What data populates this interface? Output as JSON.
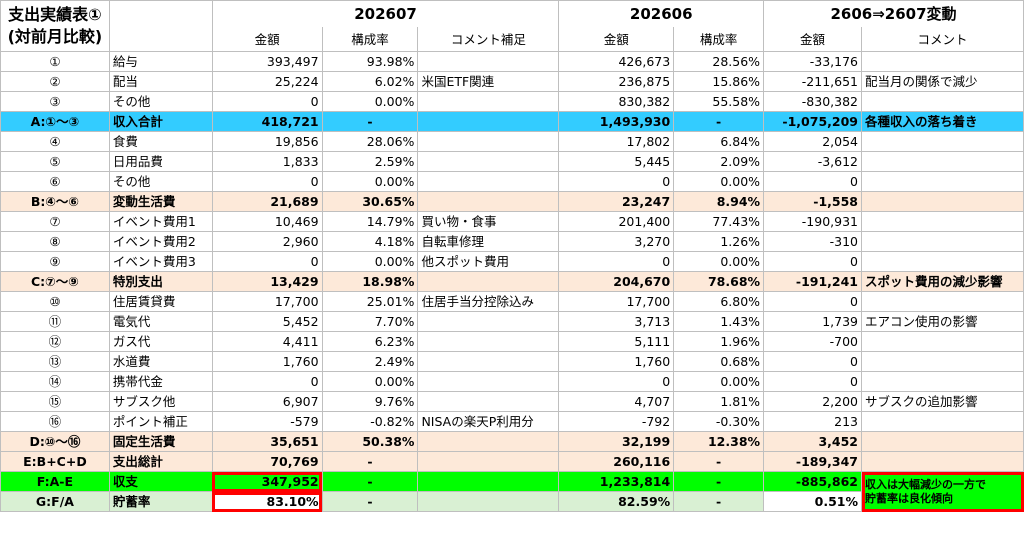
{
  "title": "支出実績表①\n(対前月比較)",
  "title_line1": "支出実績表①",
  "title_line2": "(対前月比較)",
  "periods": {
    "current": "202607",
    "previous": "202606",
    "diff": "2606⇒2607変動"
  },
  "col_headers": {
    "amount": "金額",
    "ratio": "構成率",
    "comment_supp": "コメント補足",
    "comment": "コメント"
  },
  "rows": [
    {
      "id": "①",
      "item": "給与",
      "cur_amt": "393,497",
      "cur_ratio": "93.98%",
      "cur_comment": "",
      "prev_amt": "426,673",
      "prev_ratio": "28.56%",
      "diff": "-33,176",
      "comment": ""
    },
    {
      "id": "②",
      "item": "配当",
      "cur_amt": "25,224",
      "cur_ratio": "6.02%",
      "cur_comment": "米国ETF関連",
      "prev_amt": "236,875",
      "prev_ratio": "15.86%",
      "diff": "-211,651",
      "comment": "配当月の関係で減少"
    },
    {
      "id": "③",
      "item": "その他",
      "cur_amt": "0",
      "cur_ratio": "0.00%",
      "cur_comment": "",
      "prev_amt": "830,382",
      "prev_ratio": "55.58%",
      "diff": "-830,382",
      "comment": ""
    },
    {
      "id": "A:①～③",
      "item": "収入合計",
      "cur_amt": "418,721",
      "cur_ratio": "-",
      "cur_comment": "",
      "prev_amt": "1,493,930",
      "prev_ratio": "-",
      "diff": "-1,075,209",
      "comment": "各種収入の落ち着き",
      "style": "cyan"
    },
    {
      "id": "④",
      "item": "食費",
      "cur_amt": "19,856",
      "cur_ratio": "28.06%",
      "cur_comment": "",
      "prev_amt": "17,802",
      "prev_ratio": "6.84%",
      "diff": "2,054",
      "comment": ""
    },
    {
      "id": "⑤",
      "item": "日用品費",
      "cur_amt": "1,833",
      "cur_ratio": "2.59%",
      "cur_comment": "",
      "prev_amt": "5,445",
      "prev_ratio": "2.09%",
      "diff": "-3,612",
      "comment": ""
    },
    {
      "id": "⑥",
      "item": "その他",
      "cur_amt": "0",
      "cur_ratio": "0.00%",
      "cur_comment": "",
      "prev_amt": "0",
      "prev_ratio": "0.00%",
      "diff": "0",
      "comment": ""
    },
    {
      "id": "B:④～⑥",
      "item": "変動生活費",
      "cur_amt": "21,689",
      "cur_ratio": "30.65%",
      "cur_comment": "",
      "prev_amt": "23,247",
      "prev_ratio": "8.94%",
      "diff": "-1,558",
      "comment": "",
      "style": "tan"
    },
    {
      "id": "⑦",
      "item": "イベント費用1",
      "cur_amt": "10,469",
      "cur_ratio": "14.79%",
      "cur_comment": "買い物・食事",
      "prev_amt": "201,400",
      "prev_ratio": "77.43%",
      "diff": "-190,931",
      "comment": ""
    },
    {
      "id": "⑧",
      "item": "イベント費用2",
      "cur_amt": "2,960",
      "cur_ratio": "4.18%",
      "cur_comment": "自転車修理",
      "prev_amt": "3,270",
      "prev_ratio": "1.26%",
      "diff": "-310",
      "comment": ""
    },
    {
      "id": "⑨",
      "item": "イベント費用3",
      "cur_amt": "0",
      "cur_ratio": "0.00%",
      "cur_comment": "他スポット費用",
      "prev_amt": "0",
      "prev_ratio": "0.00%",
      "diff": "0",
      "comment": ""
    },
    {
      "id": "C:⑦～⑨",
      "item": "特別支出",
      "cur_amt": "13,429",
      "cur_ratio": "18.98%",
      "cur_comment": "",
      "prev_amt": "204,670",
      "prev_ratio": "78.68%",
      "diff": "-191,241",
      "comment": "スポット費用の減少影響",
      "style": "tan"
    },
    {
      "id": "⑩",
      "item": "住居賃貸費",
      "cur_amt": "17,700",
      "cur_ratio": "25.01%",
      "cur_comment": "住居手当分控除込み",
      "prev_amt": "17,700",
      "prev_ratio": "6.80%",
      "diff": "0",
      "comment": ""
    },
    {
      "id": "⑪",
      "item": "電気代",
      "cur_amt": "5,452",
      "cur_ratio": "7.70%",
      "cur_comment": "",
      "prev_amt": "3,713",
      "prev_ratio": "1.43%",
      "diff": "1,739",
      "comment": "エアコン使用の影響"
    },
    {
      "id": "⑫",
      "item": "ガス代",
      "cur_amt": "4,411",
      "cur_ratio": "6.23%",
      "cur_comment": "",
      "prev_amt": "5,111",
      "prev_ratio": "1.96%",
      "diff": "-700",
      "comment": ""
    },
    {
      "id": "⑬",
      "item": "水道費",
      "cur_amt": "1,760",
      "cur_ratio": "2.49%",
      "cur_comment": "",
      "prev_amt": "1,760",
      "prev_ratio": "0.68%",
      "diff": "0",
      "comment": ""
    },
    {
      "id": "⑭",
      "item": "携帯代金",
      "cur_amt": "0",
      "cur_ratio": "0.00%",
      "cur_comment": "",
      "prev_amt": "0",
      "prev_ratio": "0.00%",
      "diff": "0",
      "comment": ""
    },
    {
      "id": "⑮",
      "item": "サブスク他",
      "cur_amt": "6,907",
      "cur_ratio": "9.76%",
      "cur_comment": "",
      "prev_amt": "4,707",
      "prev_ratio": "1.81%",
      "diff": "2,200",
      "comment": "サブスクの追加影響"
    },
    {
      "id": "⑯",
      "item": "ポイント補正",
      "cur_amt": "-579",
      "cur_ratio": "-0.82%",
      "cur_comment": "NISAの楽天P利用分",
      "prev_amt": "-792",
      "prev_ratio": "-0.30%",
      "diff": "213",
      "comment": ""
    },
    {
      "id": "D:⑩～⑯",
      "item": "固定生活費",
      "cur_amt": "35,651",
      "cur_ratio": "50.38%",
      "cur_comment": "",
      "prev_amt": "32,199",
      "prev_ratio": "12.38%",
      "diff": "3,452",
      "comment": "",
      "style": "tan"
    },
    {
      "id": "E:B+C+D",
      "item": "支出総計",
      "cur_amt": "70,769",
      "cur_ratio": "-",
      "cur_comment": "",
      "prev_amt": "260,116",
      "prev_ratio": "-",
      "diff": "-189,347",
      "comment": "",
      "style": "tan"
    },
    {
      "id": "F:A-E",
      "item": "収支",
      "cur_amt": "347,952",
      "cur_ratio": "-",
      "cur_comment": "",
      "prev_amt": "1,233,814",
      "prev_ratio": "-",
      "diff": "-885,862",
      "comment": "収入は大幅減少の一方で\n貯蓄率は良化傾向",
      "style": "green"
    },
    {
      "id": "G:F/A",
      "item": "貯蓄率",
      "cur_amt": "83.10%",
      "cur_ratio": "-",
      "cur_comment": "",
      "prev_amt": "82.59%",
      "prev_ratio": "-",
      "diff": "0.51%",
      "comment": "",
      "style": "ratio"
    }
  ],
  "colors": {
    "income_total": "#33ccff",
    "subtotal": "#fde9d9",
    "balance": "#00ff00",
    "savings_rate": "#d9f0d3",
    "highlight_border": "#ff0000"
  }
}
